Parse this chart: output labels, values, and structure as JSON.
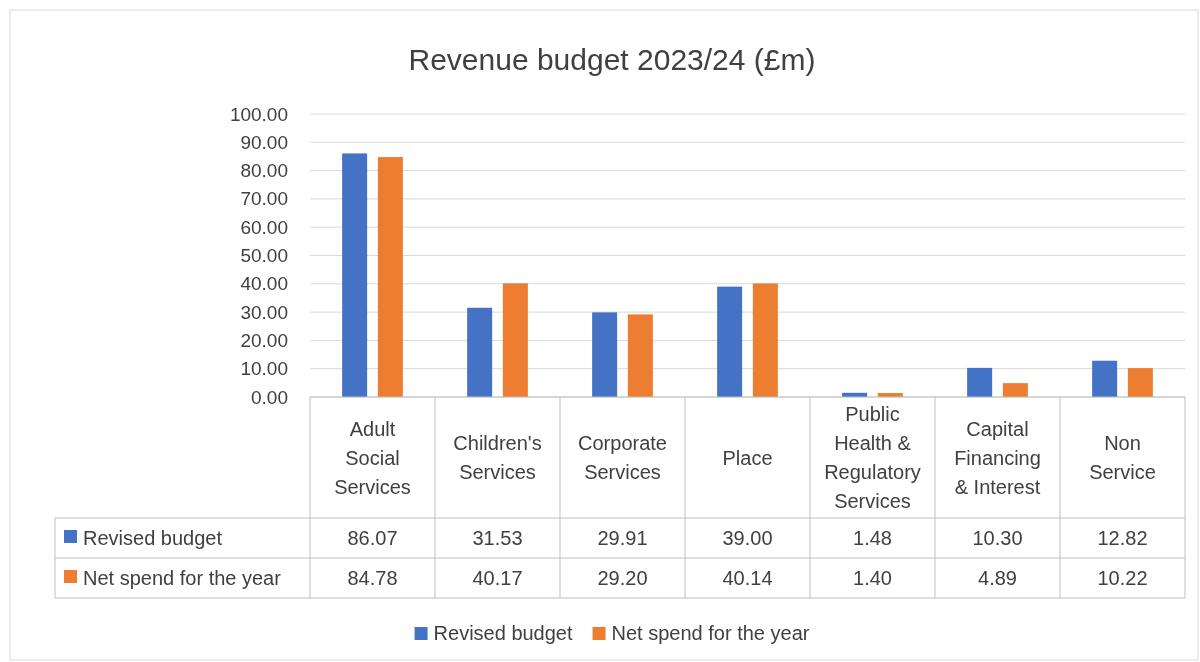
{
  "chart_data": {
    "type": "bar",
    "title": "Revenue budget 2023/24 (£m)",
    "categories": [
      "Adult Social Services",
      "Children's Services",
      "Corporate Services",
      "Place",
      "Public Health & Regulatory Services",
      "Capital Financing & Interest",
      "Non Service"
    ],
    "series": [
      {
        "name": "Revised budget",
        "color": "#4472c4",
        "values": [
          86.07,
          31.53,
          29.91,
          39.0,
          1.48,
          10.3,
          12.82
        ],
        "value_labels": [
          "86.07",
          "31.53",
          "29.91",
          "39.00",
          "1.48",
          "10.30",
          "12.82"
        ]
      },
      {
        "name": "Net spend for the year",
        "color": "#ed7d31",
        "values": [
          84.78,
          40.17,
          29.2,
          40.14,
          1.4,
          4.89,
          10.22
        ],
        "value_labels": [
          "84.78",
          "40.17",
          "29.20",
          "40.14",
          "1.40",
          "4.89",
          "10.22"
        ]
      }
    ],
    "ylim": [
      0,
      100
    ],
    "yticks": [
      {
        "value": 0,
        "label": "0.00"
      },
      {
        "value": 10,
        "label": "10.00"
      },
      {
        "value": 20,
        "label": "20.00"
      },
      {
        "value": 30,
        "label": "30.00"
      },
      {
        "value": 40,
        "label": "40.00"
      },
      {
        "value": 50,
        "label": "50.00"
      },
      {
        "value": 60,
        "label": "60.00"
      },
      {
        "value": 70,
        "label": "70.00"
      },
      {
        "value": 80,
        "label": "80.00"
      },
      {
        "value": 90,
        "label": "90.00"
      },
      {
        "value": 100,
        "label": "100.00"
      }
    ],
    "grid": "y",
    "legend": "bottom"
  }
}
